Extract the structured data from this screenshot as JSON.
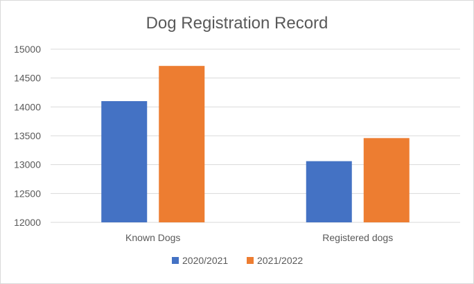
{
  "chart_data": {
    "type": "bar",
    "title": "Dog Registration Record",
    "xlabel": "",
    "ylabel": "",
    "categories": [
      "Known Dogs",
      "Registered dogs"
    ],
    "series": [
      {
        "name": "2020/2021",
        "values": [
          14100,
          13060
        ],
        "color": "#4472C4"
      },
      {
        "name": "2021/2022",
        "values": [
          14710,
          13460
        ],
        "color": "#ED7D31"
      }
    ],
    "ylim": [
      12000,
      15000
    ],
    "yticks": [
      "12000",
      "12500",
      "13000",
      "13500",
      "14000",
      "14500",
      "15000"
    ],
    "grid": true,
    "legend": "bottom"
  }
}
